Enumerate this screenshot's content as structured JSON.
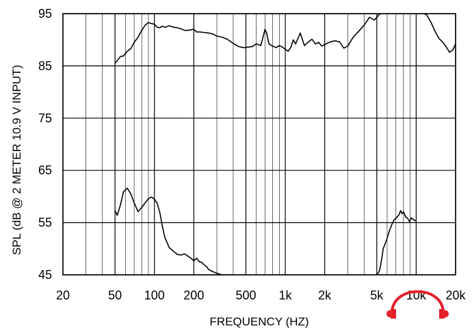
{
  "chart_data": {
    "type": "line",
    "xlabel": "FREQUENCY  (HZ)",
    "ylabel": "SPL (dB @ 2 METER 10.9 V  INPUT)",
    "x_scale": "log",
    "xlim": [
      20,
      20000
    ],
    "ylim": [
      45,
      95
    ],
    "x_ticks": [
      {
        "value": 20,
        "label": "20"
      },
      {
        "value": 50,
        "label": "50"
      },
      {
        "value": 100,
        "label": "100"
      },
      {
        "value": 200,
        "label": "200"
      },
      {
        "value": 500,
        "label": "500"
      },
      {
        "value": 1000,
        "label": "1k"
      },
      {
        "value": 2000,
        "label": "2k"
      },
      {
        "value": 5000,
        "label": "5k"
      },
      {
        "value": 10000,
        "label": "10k"
      },
      {
        "value": 20000,
        "label": "20k"
      }
    ],
    "y_ticks": [
      {
        "value": 45,
        "label": "45"
      },
      {
        "value": 55,
        "label": "55"
      },
      {
        "value": 65,
        "label": "65"
      },
      {
        "value": 75,
        "label": "75"
      },
      {
        "value": 85,
        "label": "85"
      },
      {
        "value": 95,
        "label": "95"
      }
    ],
    "grid": true,
    "series": [
      {
        "x": [
          50,
          52,
          55,
          58,
          62,
          66,
          70,
          75,
          80,
          85,
          90,
          95,
          100,
          105,
          110,
          115,
          120,
          130,
          140,
          150,
          160,
          170,
          180,
          190,
          200,
          210,
          220,
          240,
          260,
          280,
          300,
          330,
          360,
          400,
          440,
          480,
          520,
          560,
          600,
          650,
          700,
          720,
          750,
          800,
          850,
          900,
          950,
          1000,
          1050,
          1100,
          1150,
          1200,
          1300,
          1400,
          1500,
          1600,
          1700,
          1800,
          1900,
          2000,
          2200,
          2400,
          2600,
          2800,
          3000,
          3300,
          3600,
          4000,
          4400,
          4800,
          5200,
          5600,
          6000,
          6500,
          7000,
          7500,
          8000,
          8500,
          9000,
          9500,
          10000,
          10500,
          11000,
          11500,
          12000,
          13000,
          14000,
          15000,
          16000,
          17000,
          18000,
          19000,
          20000
        ],
        "y": [
          85.5,
          86.0,
          86.8,
          86.9,
          87.8,
          88.3,
          89.5,
          90.5,
          91.8,
          92.8,
          93.3,
          93.1,
          93.0,
          92.4,
          92.3,
          92.6,
          92.4,
          92.7,
          92.4,
          92.3,
          92.1,
          91.8,
          91.8,
          91.9,
          92.0,
          91.5,
          91.5,
          91.4,
          91.3,
          91.1,
          90.7,
          90.5,
          90.1,
          89.3,
          88.7,
          88.5,
          88.6,
          88.7,
          89.2,
          88.9,
          92.0,
          91.3,
          89.2,
          88.8,
          88.5,
          88.9,
          88.6,
          88.2,
          87.8,
          88.5,
          90.0,
          89.2,
          91.3,
          88.9,
          89.6,
          90.1,
          89.2,
          89.5,
          88.8,
          89.1,
          89.6,
          89.8,
          89.6,
          88.4,
          88.8,
          90.5,
          91.5,
          92.8,
          94.3,
          93.8,
          94.8,
          95.4,
          95.6,
          95.4,
          95.0,
          95.2,
          95.5,
          95.3,
          95.6,
          95.0,
          95.2,
          95.2,
          95.3,
          95.0,
          94.8,
          93.3,
          91.5,
          90.2,
          89.5,
          88.6,
          87.6,
          88.0,
          89.2
        ]
      },
      {
        "x": [
          50,
          52,
          55,
          58,
          62,
          66,
          70,
          75,
          80,
          85,
          90,
          95,
          100,
          105,
          110,
          115,
          120,
          130,
          140,
          150,
          160,
          170,
          180,
          190,
          200,
          210,
          220,
          230,
          240,
          250,
          260,
          280,
          300,
          330,
          360,
          380
        ],
        "y": [
          57.3,
          56.4,
          58.4,
          60.9,
          61.6,
          60.5,
          58.8,
          57.1,
          57.9,
          58.8,
          59.6,
          59.9,
          59.5,
          58.7,
          56.9,
          54.3,
          52.2,
          50.2,
          49.5,
          48.9,
          48.8,
          49.0,
          48.6,
          48.2,
          47.7,
          48.2,
          47.5,
          47.4,
          46.9,
          46.6,
          46.0,
          45.6,
          45.3,
          45.0,
          45.0,
          44.8
        ]
      },
      {
        "x": [
          4900,
          5000,
          5100,
          5200,
          5300,
          5400,
          5500,
          5600,
          5800,
          6000,
          6200,
          6500,
          6800,
          7000,
          7200,
          7400,
          7600,
          7800,
          8000,
          8300,
          8600,
          8900,
          9200,
          9500,
          9800,
          10000
        ],
        "y": [
          44.8,
          45.1,
          45.3,
          45.6,
          46.2,
          47.5,
          48.6,
          50.0,
          51.0,
          52.0,
          53.2,
          54.6,
          55.6,
          55.8,
          56.2,
          56.5,
          57.3,
          56.7,
          57.1,
          56.1,
          55.8,
          55.2,
          55.9,
          55.6,
          55.4,
          55.3
        ]
      }
    ]
  },
  "logo": {
    "name": "headphones-logo-icon",
    "color": "#e3202c"
  }
}
